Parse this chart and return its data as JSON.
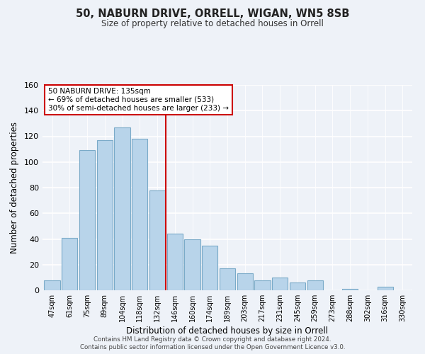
{
  "title": "50, NABURN DRIVE, ORRELL, WIGAN, WN5 8SB",
  "subtitle": "Size of property relative to detached houses in Orrell",
  "xlabel": "Distribution of detached houses by size in Orrell",
  "ylabel": "Number of detached properties",
  "bar_labels": [
    "47sqm",
    "61sqm",
    "75sqm",
    "89sqm",
    "104sqm",
    "118sqm",
    "132sqm",
    "146sqm",
    "160sqm",
    "174sqm",
    "189sqm",
    "203sqm",
    "217sqm",
    "231sqm",
    "245sqm",
    "259sqm",
    "273sqm",
    "288sqm",
    "302sqm",
    "316sqm",
    "330sqm"
  ],
  "bar_values": [
    8,
    41,
    109,
    117,
    127,
    118,
    78,
    44,
    40,
    35,
    17,
    13,
    8,
    10,
    6,
    8,
    0,
    1,
    0,
    3,
    0
  ],
  "bar_color": "#b8d4ea",
  "bar_edge_color": "#7aaac8",
  "vline_x": 6.5,
  "vline_color": "#cc0000",
  "annotation_title": "50 NABURN DRIVE: 135sqm",
  "annotation_line1": "← 69% of detached houses are smaller (533)",
  "annotation_line2": "30% of semi-detached houses are larger (233) →",
  "annotation_box_color": "#ffffff",
  "annotation_box_edge": "#cc0000",
  "ylim": [
    0,
    160
  ],
  "yticks": [
    0,
    20,
    40,
    60,
    80,
    100,
    120,
    140,
    160
  ],
  "footnote1": "Contains HM Land Registry data © Crown copyright and database right 2024.",
  "footnote2": "Contains public sector information licensed under the Open Government Licence v3.0.",
  "bg_color": "#eef2f8"
}
